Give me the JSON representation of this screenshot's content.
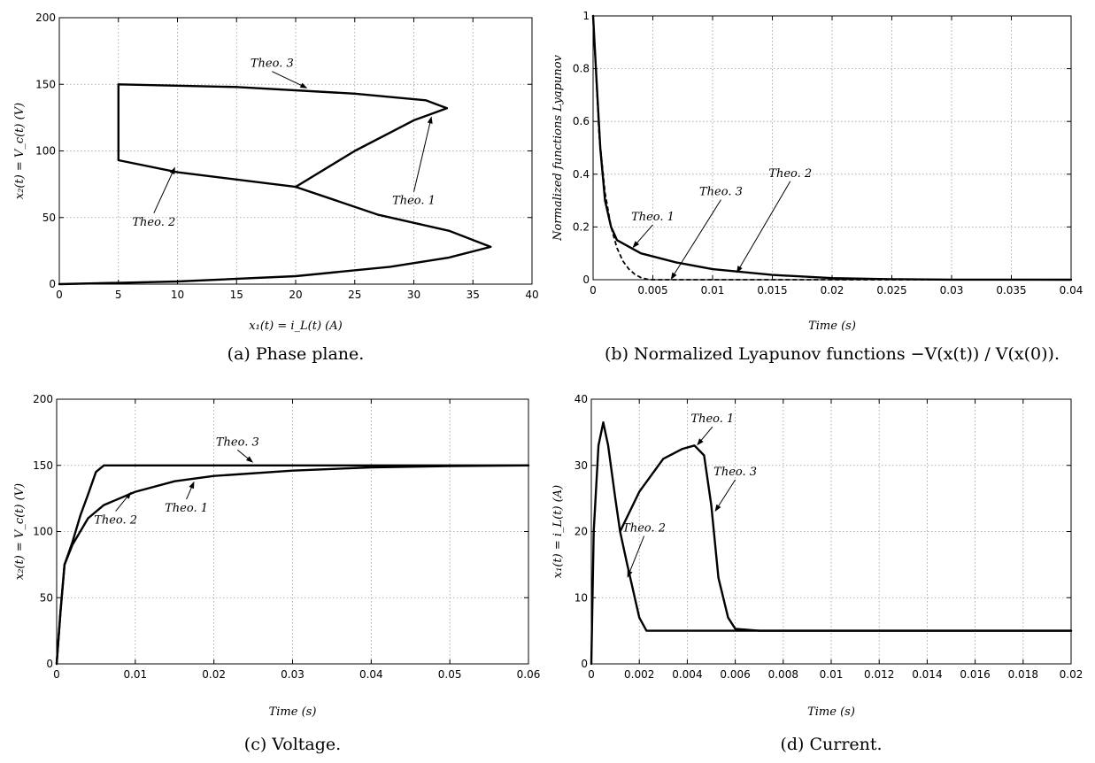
{
  "chart_data": [
    {
      "id": "a",
      "type": "line",
      "caption": "(a) Phase plane.",
      "xlabel": "x₁(t) = i_L(t)   (A)",
      "ylabel": "x₂(t) = V_c(t)   (V)",
      "xlim": [
        0,
        40
      ],
      "ylim": [
        0,
        200
      ],
      "xticks": [
        "0",
        "5",
        "10",
        "15",
        "20",
        "25",
        "30",
        "35",
        "40"
      ],
      "yticks": [
        "0",
        "50",
        "100",
        "150",
        "200"
      ],
      "grid": true,
      "series": [
        {
          "points": [
            [
              0,
              0
            ],
            [
              10,
              2
            ],
            [
              20,
              6
            ],
            [
              28,
              13
            ],
            [
              33,
              20
            ],
            [
              36.5,
              28
            ],
            [
              33,
              40
            ],
            [
              27,
              52
            ],
            [
              20,
              73
            ],
            [
              10,
              84
            ],
            [
              5,
              93
            ],
            [
              5,
              150
            ],
            [
              15,
              148
            ],
            [
              25,
              143
            ],
            [
              31,
              138
            ],
            [
              32.8,
              132
            ],
            [
              30,
              123
            ],
            [
              25,
              100
            ],
            [
              20,
              73
            ]
          ]
        }
      ],
      "annotations": [
        {
          "text": "Theo. 3",
          "tx": 18,
          "ty": 163,
          "ax": 21,
          "ay": 147
        },
        {
          "text": "Theo. 1",
          "tx": 30,
          "ty": 60,
          "ax": 31.5,
          "ay": 126
        },
        {
          "text": "Theo. 2",
          "tx": 8,
          "ty": 44,
          "ax": 9.8,
          "ay": 88
        }
      ]
    },
    {
      "id": "b",
      "type": "line",
      "caption": "(b) Normalized Lyapunov functions −V(x(t)) / V(x(0)).",
      "xlabel": "Time (s)",
      "ylabel": "Normalized functions Lyapunov",
      "xlim": [
        0,
        0.04
      ],
      "ylim": [
        0,
        1
      ],
      "xticks": [
        "0",
        "0.005",
        "0.01",
        "0.015",
        "0.02",
        "0.025",
        "0.03",
        "0.035",
        "0.04"
      ],
      "yticks": [
        "0",
        "0.2",
        "0.4",
        "0.6",
        "0.8",
        "1"
      ],
      "grid": true,
      "series": [
        {
          "style": "solid",
          "points": [
            [
              0,
              1
            ],
            [
              0.0003,
              0.75
            ],
            [
              0.0006,
              0.5
            ],
            [
              0.001,
              0.3
            ],
            [
              0.0015,
              0.2
            ],
            [
              0.002,
              0.15
            ],
            [
              0.004,
              0.1
            ],
            [
              0.007,
              0.065
            ],
            [
              0.01,
              0.04
            ],
            [
              0.015,
              0.018
            ],
            [
              0.02,
              0.006
            ],
            [
              0.025,
              0.002
            ],
            [
              0.03,
              0.0005
            ],
            [
              0.04,
              0
            ]
          ]
        },
        {
          "style": "dashed",
          "points": [
            [
              0,
              1
            ],
            [
              0.0005,
              0.55
            ],
            [
              0.001,
              0.33
            ],
            [
              0.0015,
              0.2
            ],
            [
              0.002,
              0.12
            ],
            [
              0.0025,
              0.07
            ],
            [
              0.003,
              0.04
            ],
            [
              0.0035,
              0.02
            ],
            [
              0.004,
              0.008
            ],
            [
              0.0045,
              0.002
            ],
            [
              0.005,
              0
            ],
            [
              0.04,
              0
            ]
          ]
        }
      ],
      "annotations": [
        {
          "text": "Theo. 1",
          "tx": 0.005,
          "ty": 0.225,
          "ax": 0.0033,
          "ay": 0.12
        },
        {
          "text": "Theo. 3",
          "tx": 0.0107,
          "ty": 0.32,
          "ax": 0.0065,
          "ay": 0.0
        },
        {
          "text": "Theo. 2",
          "tx": 0.0165,
          "ty": 0.39,
          "ax": 0.012,
          "ay": 0.025
        }
      ]
    },
    {
      "id": "c",
      "type": "line",
      "caption": "(c) Voltage.",
      "xlabel": "Time (s)",
      "ylabel": "x₂(t) = V_c(t)   (V)",
      "xlim": [
        0,
        0.06
      ],
      "ylim": [
        0,
        200
      ],
      "xticks": [
        "0",
        "0.01",
        "0.02",
        "0.03",
        "0.04",
        "0.05",
        "0.06"
      ],
      "yticks": [
        "0",
        "50",
        "100",
        "150",
        "200"
      ],
      "grid": true,
      "series": [
        {
          "points": [
            [
              0,
              0
            ],
            [
              0.0005,
              40
            ],
            [
              0.001,
              75
            ],
            [
              0.002,
              90
            ],
            [
              0.004,
              110
            ],
            [
              0.006,
              120
            ],
            [
              0.01,
              130
            ],
            [
              0.015,
              138
            ],
            [
              0.02,
              142
            ],
            [
              0.03,
              146
            ],
            [
              0.04,
              148.5
            ],
            [
              0.05,
              149.5
            ],
            [
              0.06,
              150
            ]
          ]
        },
        {
          "points": [
            [
              0,
              0
            ],
            [
              0.0005,
              40
            ],
            [
              0.001,
              75
            ],
            [
              0.002,
              92
            ],
            [
              0.003,
              112
            ],
            [
              0.004,
              128
            ],
            [
              0.005,
              145
            ],
            [
              0.006,
              150
            ],
            [
              0.06,
              150
            ]
          ]
        }
      ],
      "annotations": [
        {
          "text": "Theo. 3",
          "tx": 0.023,
          "ty": 165,
          "ax": 0.025,
          "ay": 152
        },
        {
          "text": "Theo. 1",
          "tx": 0.0165,
          "ty": 115,
          "ax": 0.0175,
          "ay": 138
        },
        {
          "text": "Theo. 2",
          "tx": 0.0075,
          "ty": 106,
          "ax": 0.0095,
          "ay": 130
        }
      ]
    },
    {
      "id": "d",
      "type": "line",
      "caption": "(d) Current.",
      "xlabel": "Time (s)",
      "ylabel": "x₁(t) = i_L(t)   (A)",
      "xlim": [
        0,
        0.02
      ],
      "ylim": [
        0,
        40
      ],
      "xticks": [
        "0",
        "0.002",
        "0.004",
        "0.006",
        "0.008",
        "0.01",
        "0.012",
        "0.014",
        "0.016",
        "0.018",
        "0.02"
      ],
      "yticks": [
        "0",
        "10",
        "20",
        "30",
        "40"
      ],
      "grid": true,
      "series": [
        {
          "points": [
            [
              0,
              0
            ],
            [
              0.0001,
              20
            ],
            [
              0.0003,
              33
            ],
            [
              0.0005,
              36.5
            ],
            [
              0.0007,
              33
            ],
            [
              0.001,
              25
            ],
            [
              0.0012,
              20
            ],
            [
              0.0015,
              15
            ],
            [
              0.002,
              7
            ],
            [
              0.0023,
              5
            ],
            [
              0.02,
              5
            ]
          ]
        },
        {
          "points": [
            [
              0.0012,
              20
            ],
            [
              0.002,
              26
            ],
            [
              0.003,
              31
            ],
            [
              0.0038,
              32.5
            ],
            [
              0.0043,
              33
            ],
            [
              0.0047,
              31.5
            ],
            [
              0.005,
              24
            ],
            [
              0.0053,
              13
            ],
            [
              0.0057,
              7
            ],
            [
              0.006,
              5.3
            ],
            [
              0.007,
              5
            ],
            [
              0.02,
              5
            ]
          ]
        }
      ],
      "annotations": [
        {
          "text": "Theo. 1",
          "tx": 0.00505,
          "ty": 36.5,
          "ax": 0.0044,
          "ay": 33
        },
        {
          "text": "Theo. 3",
          "tx": 0.006,
          "ty": 28.5,
          "ax": 0.00515,
          "ay": 23
        },
        {
          "text": "Theo. 2",
          "tx": 0.0022,
          "ty": 20,
          "ax": 0.0015,
          "ay": 13
        }
      ]
    }
  ]
}
